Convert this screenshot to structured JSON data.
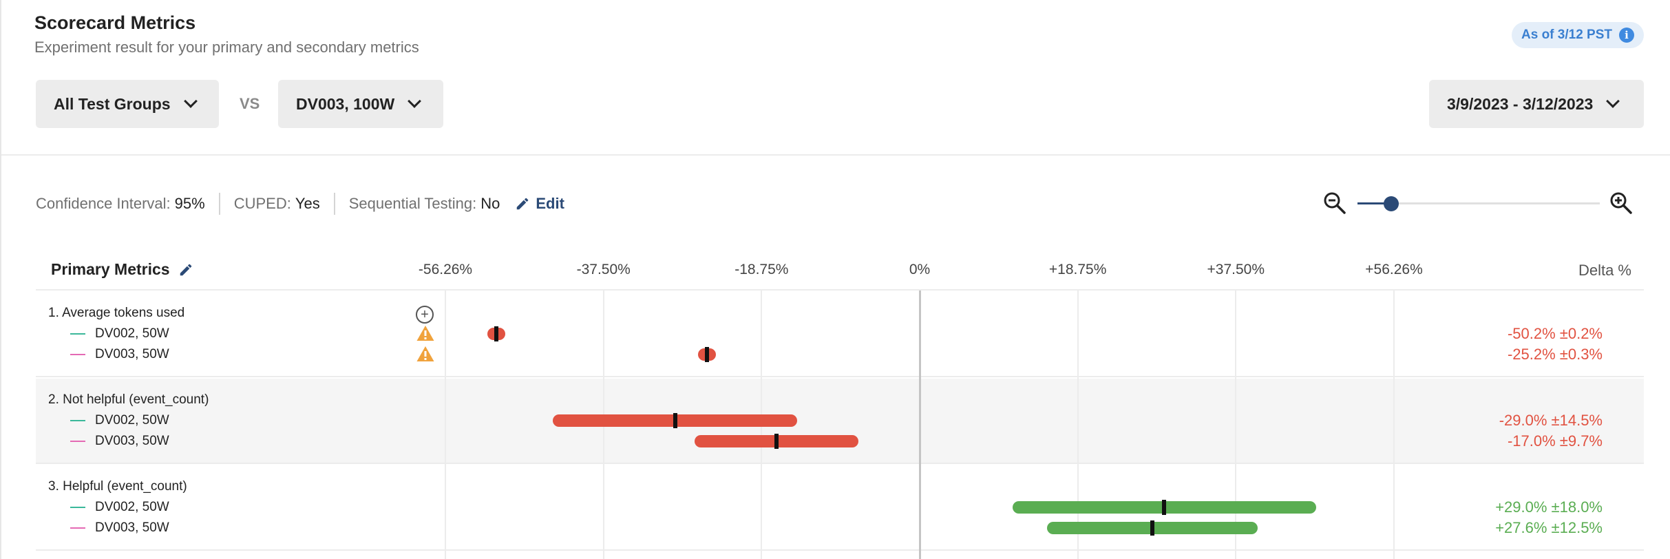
{
  "header": {
    "title": "Scorecard Metrics",
    "subtitle": "Experiment result for your primary and secondary metrics",
    "as_of": "As of 3/12 PST",
    "info_icon": "i"
  },
  "filters": {
    "group_a": "All Test Groups",
    "vs": "VS",
    "group_b": "DV003, 100W",
    "date_range": "3/9/2023 - 3/12/2023"
  },
  "settings": {
    "ci_label": "Confidence Interval:",
    "ci_value": "95%",
    "cuped_label": "CUPED:",
    "cuped_value": "Yes",
    "seq_label": "Sequential Testing:",
    "seq_value": "No",
    "edit_label": "Edit"
  },
  "zoom": {
    "level": 0.14
  },
  "table": {
    "section_label": "Primary Metrics",
    "delta_header": "Delta %",
    "axis_range": [
      -56.26,
      56.26
    ],
    "ticks": [
      {
        "value": -56.26,
        "label": "-56.26%"
      },
      {
        "value": -37.5,
        "label": "-37.50%"
      },
      {
        "value": -18.75,
        "label": "-18.75%"
      },
      {
        "value": 0,
        "label": "0%"
      },
      {
        "value": 18.75,
        "label": "+18.75%"
      },
      {
        "value": 37.5,
        "label": "+37.50%"
      },
      {
        "value": 56.26,
        "label": "+56.26%"
      }
    ],
    "colors": {
      "negative": "#e15241",
      "positive": "#5aad52",
      "dv002": "#3bb89a",
      "dv003": "#e46ab4"
    },
    "metrics": [
      {
        "name": "1. Average tokens used",
        "variants": [
          {
            "name": "DV002, 50W",
            "delta": -50.2,
            "ci": 0.2,
            "label": "-50.2% ±0.2%",
            "warning": true
          },
          {
            "name": "DV003, 50W",
            "delta": -25.2,
            "ci": 0.3,
            "label": "-25.2% ±0.3%",
            "warning": true
          }
        ]
      },
      {
        "name": "2. Not helpful (event_count)",
        "variants": [
          {
            "name": "DV002, 50W",
            "delta": -29.0,
            "ci": 14.5,
            "label": "-29.0% ±14.5%",
            "warning": false
          },
          {
            "name": "DV003, 50W",
            "delta": -17.0,
            "ci": 9.7,
            "label": "-17.0% ±9.7%",
            "warning": false
          }
        ]
      },
      {
        "name": "3. Helpful (event_count)",
        "variants": [
          {
            "name": "DV002, 50W",
            "delta": 29.0,
            "ci": 18.0,
            "label": "+29.0% ±18.0%",
            "warning": false
          },
          {
            "name": "DV003, 50W",
            "delta": 27.6,
            "ci": 12.5,
            "label": "+27.6% ±12.5%",
            "warning": false
          }
        ]
      }
    ]
  }
}
